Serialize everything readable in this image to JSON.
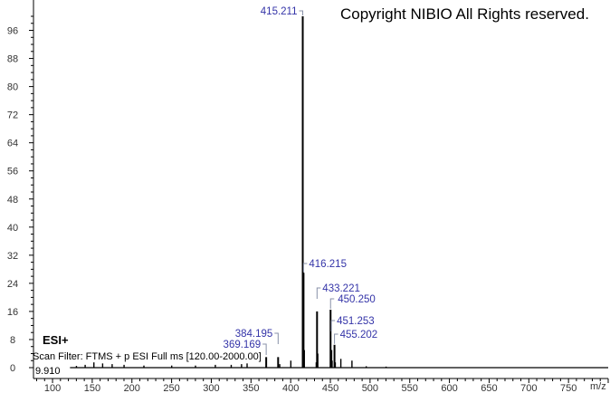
{
  "chart_data": {
    "type": "bar",
    "title": "",
    "xlabel": "m/z",
    "ylabel": "",
    "xlim": [
      76,
      800
    ],
    "ylim": [
      0,
      104
    ],
    "x_ticks": [
      100,
      150,
      200,
      250,
      300,
      350,
      400,
      450,
      500,
      550,
      600,
      650,
      700,
      750
    ],
    "y_ticks": [
      0,
      8,
      16,
      24,
      32,
      40,
      48,
      56,
      64,
      72,
      80,
      88,
      96
    ],
    "annotations": {
      "copyright": "Copyright NIBIO All Rights reserved.",
      "ionization": "ESI+",
      "scan_filter": "Scan Filter: FTMS + p ESI Full ms [120.00-2000.00]",
      "base_intensity": "9.910"
    },
    "labeled_peaks": [
      {
        "mz": 415.211,
        "intensity": 100,
        "label": "415.211"
      },
      {
        "mz": 416.215,
        "intensity": 27,
        "label": "416.215"
      },
      {
        "mz": 433.221,
        "intensity": 16,
        "label": "433.221"
      },
      {
        "mz": 450.25,
        "intensity": 16.5,
        "label": "450.250"
      },
      {
        "mz": 451.253,
        "intensity": 5,
        "label": "451.253"
      },
      {
        "mz": 455.202,
        "intensity": 6.5,
        "label": "455.202"
      },
      {
        "mz": 384.195,
        "intensity": 3,
        "label": "384.195"
      },
      {
        "mz": 369.169,
        "intensity": 3,
        "label": "369.169"
      }
    ],
    "minor_peaks": [
      {
        "mz": 400.2,
        "intensity": 2
      },
      {
        "mz": 417.2,
        "intensity": 5
      },
      {
        "mz": 434.2,
        "intensity": 4
      },
      {
        "mz": 432.2,
        "intensity": 1.5
      },
      {
        "mz": 452.2,
        "intensity": 2
      },
      {
        "mz": 456.2,
        "intensity": 1.5
      },
      {
        "mz": 463.2,
        "intensity": 2.5
      },
      {
        "mz": 477.2,
        "intensity": 2
      },
      {
        "mz": 386.2,
        "intensity": 1
      },
      {
        "mz": 345.1,
        "intensity": 1.2
      },
      {
        "mz": 338.1,
        "intensity": 1
      },
      {
        "mz": 325.1,
        "intensity": 0.8
      },
      {
        "mz": 305.1,
        "intensity": 0.8
      },
      {
        "mz": 280.1,
        "intensity": 0.6
      },
      {
        "mz": 250.1,
        "intensity": 0.6
      },
      {
        "mz": 215.1,
        "intensity": 0.6
      },
      {
        "mz": 190.1,
        "intensity": 0.8
      },
      {
        "mz": 175.1,
        "intensity": 1
      },
      {
        "mz": 163.1,
        "intensity": 1.2
      },
      {
        "mz": 152.1,
        "intensity": 1.5
      },
      {
        "mz": 141.1,
        "intensity": 0.8
      },
      {
        "mz": 130.1,
        "intensity": 0.5
      },
      {
        "mz": 495.2,
        "intensity": 0.4
      },
      {
        "mz": 520.2,
        "intensity": 0.3
      }
    ]
  }
}
